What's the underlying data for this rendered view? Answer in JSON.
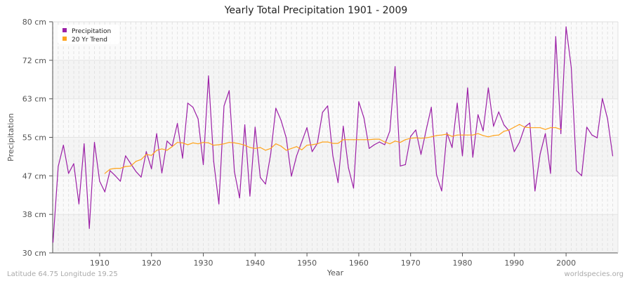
{
  "chart_data": {
    "type": "line",
    "title": "Yearly Total Precipitation 1901 - 2009",
    "xlabel": "Year",
    "ylabel": "Precipitation",
    "xlim": [
      1901,
      2009
    ],
    "ylim": [
      30,
      80
    ],
    "y_ticks": [
      30,
      38.33,
      46.67,
      55,
      63.33,
      71.67,
      80
    ],
    "y_tick_labels": [
      "30 cm",
      "38 cm",
      "47 cm",
      "55 cm",
      "63 cm",
      "72 cm",
      "80 cm"
    ],
    "x_ticks": [
      1910,
      1920,
      1930,
      1940,
      1950,
      1960,
      1970,
      1980,
      1990,
      2000
    ],
    "x_tick_labels": [
      "1910",
      "1920",
      "1930",
      "1940",
      "1950",
      "1960",
      "1970",
      "1980",
      "1990",
      "2000"
    ],
    "grid": true,
    "legend_position": "top-left",
    "series": [
      {
        "name": "Precipitation",
        "color": "#9b1fa6",
        "x_start": 1901,
        "values": [
          32.3,
          48.7,
          53.3,
          47.2,
          49.3,
          40.6,
          53.6,
          35.3,
          53.9,
          45.5,
          43.2,
          47.8,
          46.7,
          45.5,
          51.0,
          49.3,
          47.6,
          46.4,
          51.9,
          48.2,
          55.8,
          47.3,
          54.2,
          53.1,
          58.0,
          50.5,
          62.4,
          61.5,
          59.0,
          49.1,
          68.3,
          49.8,
          40.6,
          61.8,
          65.1,
          47.6,
          41.9,
          57.7,
          42.3,
          57.2,
          46.3,
          44.9,
          51.4,
          61.3,
          58.7,
          54.9,
          46.6,
          51.0,
          54.0,
          57.1,
          51.9,
          53.7,
          60.4,
          61.8,
          51.0,
          45.2,
          57.4,
          48.4,
          44.0,
          62.7,
          59.2,
          52.6,
          53.4,
          54.0,
          53.4,
          56.4,
          70.3,
          48.8,
          49.1,
          55.2,
          56.6,
          51.3,
          56.6,
          61.5,
          46.9,
          43.4,
          56.0,
          52.8,
          62.4,
          51.0,
          65.7,
          50.7,
          59.9,
          56.4,
          65.7,
          57.4,
          60.5,
          57.7,
          56.4,
          51.9,
          53.9,
          57.2,
          58.1,
          43.4,
          51.4,
          55.8,
          47.2,
          76.8,
          55.8,
          78.9,
          70.1,
          47.8,
          46.7,
          57.2,
          55.5,
          54.9,
          63.4,
          59.0,
          51.0
        ]
      },
      {
        "name": "20 Yr Trend",
        "color": "#ffa31a",
        "x_start": 1911,
        "values": [
          47.2,
          48.1,
          48.3,
          48.3,
          48.7,
          48.8,
          49.8,
          50.2,
          51.3,
          51.1,
          52.2,
          52.5,
          52.2,
          53.0,
          53.9,
          53.8,
          53.4,
          53.8,
          53.6,
          53.9,
          53.8,
          53.3,
          53.4,
          53.6,
          53.9,
          53.8,
          53.6,
          53.3,
          52.8,
          52.6,
          52.8,
          52.2,
          52.6,
          53.6,
          53.1,
          52.2,
          52.6,
          53.0,
          52.3,
          53.3,
          53.4,
          53.6,
          54.0,
          54.0,
          53.7,
          53.7,
          54.5,
          54.5,
          54.5,
          54.5,
          54.5,
          54.5,
          54.6,
          54.6,
          54.0,
          53.6,
          54.2,
          53.9,
          54.5,
          54.8,
          54.9,
          54.8,
          54.9,
          55.1,
          55.4,
          55.5,
          55.7,
          55.2,
          55.5,
          55.5,
          55.5,
          55.5,
          55.8,
          55.4,
          55.1,
          55.4,
          55.5,
          56.3,
          56.6,
          57.2,
          57.8,
          57.2,
          57.1,
          57.1,
          57.1,
          56.7,
          57.1,
          57.1,
          56.7
        ]
      }
    ]
  },
  "footer": {
    "location": "Latitude 64.75 Longitude 19.25",
    "source": "worldspecies.org"
  }
}
